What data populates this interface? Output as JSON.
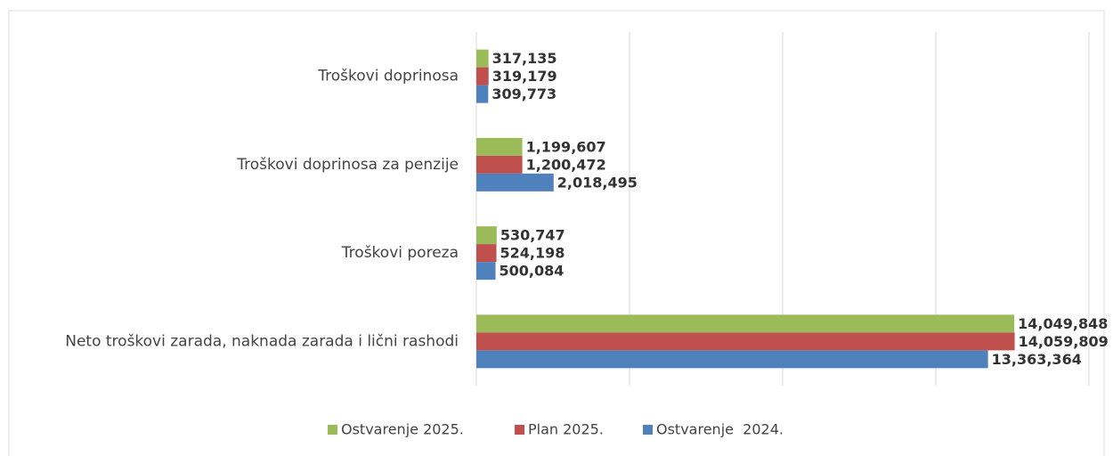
{
  "chart_data": {
    "type": "hbar",
    "categories": [
      "Troškovi doprinosa",
      "Troškovi doprinosa za penzije",
      "Troškovi poreza",
      "Neto troškovi zarada, naknada zarada i lični rashodi"
    ],
    "series": [
      {
        "name": "Ostvarenje 2025.",
        "color": "#9bbb59",
        "values": [
          317135,
          1199607,
          530747,
          14049848
        ],
        "value_labels": [
          "317,135",
          "1,199,607",
          "530,747",
          "14,049,848"
        ]
      },
      {
        "name": "Plan 2025.",
        "color": "#c0504d",
        "values": [
          319179,
          1200472,
          524198,
          14059809
        ],
        "value_labels": [
          "319,179",
          "1,200,472",
          "524,198",
          "14,059,809"
        ]
      },
      {
        "name": "Ostvarenje  2024.",
        "color": "#4f81bd",
        "values": [
          309773,
          2018495,
          500084,
          13363364
        ],
        "value_labels": [
          "309,773",
          "2,018,495",
          "500,084",
          "13,363,364"
        ]
      }
    ],
    "xlim": [
      0,
      16000000
    ],
    "xticks": [
      0,
      4000000,
      8000000,
      12000000,
      16000000
    ],
    "grid": true,
    "legend": "bottom"
  }
}
